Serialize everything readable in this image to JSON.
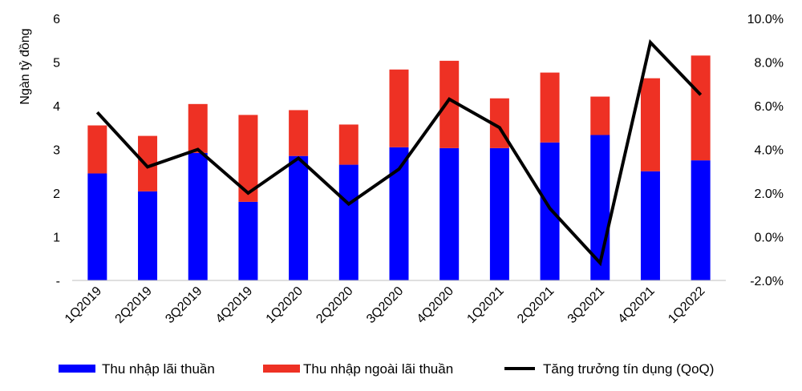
{
  "chart_data": {
    "type": "bar",
    "stacked": true,
    "categories": [
      "1Q2019",
      "2Q2019",
      "3Q2019",
      "4Q2019",
      "1Q2020",
      "2Q2020",
      "3Q2020",
      "4Q2020",
      "1Q2021",
      "2Q2021",
      "3Q2021",
      "4Q2021",
      "1Q2022"
    ],
    "series": [
      {
        "name": "Thu nhập lãi thuần",
        "kind": "bar",
        "axis": "left",
        "color": "#0000ff",
        "values": [
          2.45,
          2.04,
          2.92,
          1.8,
          2.85,
          2.65,
          3.05,
          3.03,
          3.03,
          3.16,
          3.33,
          2.5,
          2.75
        ]
      },
      {
        "name": "Thu nhập ngoài lãi thuần",
        "kind": "bar",
        "axis": "left",
        "color": "#ee3124",
        "values": [
          1.1,
          1.27,
          1.12,
          1.99,
          1.05,
          0.92,
          1.78,
          2.0,
          1.14,
          1.6,
          0.88,
          2.13,
          2.4
        ]
      },
      {
        "name": "Tăng trưởng tín dụng (QoQ)",
        "kind": "line",
        "axis": "right",
        "color": "#000000",
        "values": [
          5.7,
          3.2,
          4.0,
          2.0,
          3.6,
          1.5,
          3.1,
          6.3,
          5.0,
          1.3,
          -1.2,
          8.9,
          6.5
        ]
      }
    ],
    "ylabel": "Ngàn tỷ đồng",
    "y_left": {
      "min": 0,
      "max": 6,
      "ticks": [
        "-",
        "1",
        "2",
        "3",
        "4",
        "5",
        "6"
      ]
    },
    "y_right": {
      "min": -2,
      "max": 10,
      "ticks": [
        "-2.0%",
        "0.0%",
        "2.0%",
        "4.0%",
        "6.0%",
        "8.0%",
        "10.0%"
      ]
    },
    "grid": false,
    "legend_position": "bottom"
  }
}
